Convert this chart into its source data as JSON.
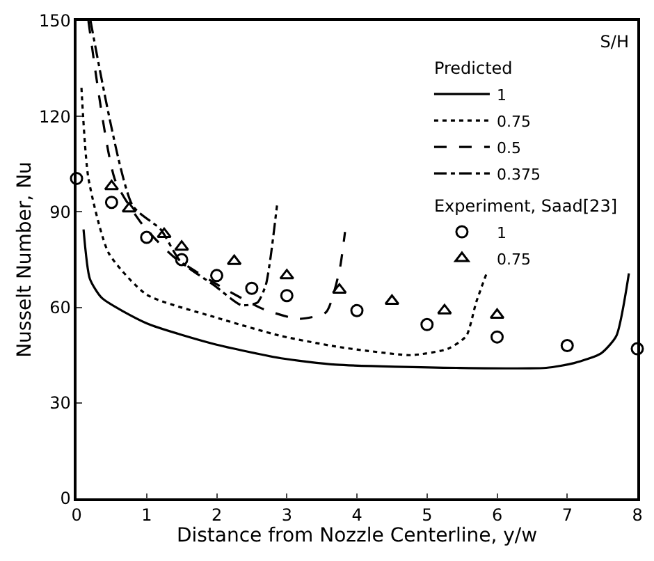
{
  "chart_data": {
    "type": "line",
    "xlabel": "Distance from Nozzle Centerline, y/w",
    "ylabel": "Nusselt Number, Nu",
    "legend_title": "S/H",
    "annotations": [
      "Predicted",
      "Experiment, Saad[23]"
    ],
    "xlim": [
      0,
      8
    ],
    "xticks": [
      0,
      1,
      2,
      3,
      4,
      5,
      6,
      7,
      8
    ],
    "ylim": [
      0,
      150
    ],
    "yticks": [
      0,
      30,
      60,
      90,
      120,
      150
    ],
    "grid": false,
    "legend": "top right",
    "series": [
      {
        "name": "1",
        "color": "#000000",
        "line_style": "solid",
        "marker": "none",
        "x": [
          0.1,
          0.19,
          0.36,
          1,
          1.96,
          2.92,
          3.7,
          5.42,
          6.7,
          7.1,
          7.48,
          7.7,
          7.88
        ],
        "values": [
          84.5,
          69,
          63,
          55,
          48.5,
          44,
          42,
          41,
          41,
          42.5,
          45.5,
          51,
          70.7
        ]
      },
      {
        "name": "0.75",
        "color": "#000000",
        "line_style": "dotted",
        "marker": "none",
        "x": [
          0.07,
          0.17,
          0.46,
          1,
          1.96,
          2.92,
          3.7,
          4.13,
          4.78,
          5.3,
          5.56,
          5.7,
          5.85
        ],
        "values": [
          129,
          100.5,
          77,
          64,
          57,
          51,
          47.7,
          46.4,
          45,
          47,
          51,
          61.5,
          70.7
        ]
      },
      {
        "name": "0.5",
        "color": "#000000",
        "line_style": "dashed",
        "marker": "none",
        "x": [
          0.17,
          0.55,
          0.94,
          1.38,
          2.1,
          2.67,
          3.17,
          3.56,
          3.75,
          3.83
        ],
        "values": [
          150,
          100,
          86,
          76,
          66,
          59.4,
          56.4,
          58.5,
          71.5,
          83.7
        ]
      },
      {
        "name": "0.375",
        "color": "#000000",
        "line_style": "dashdot",
        "marker": "none",
        "x": [
          0.2,
          0.8,
          1.2,
          1.48,
          1.96,
          2.35,
          2.58,
          2.7,
          2.77,
          2.86
        ],
        "values": [
          150,
          92,
          84.5,
          74.5,
          67,
          60.7,
          61.5,
          67,
          76,
          92
        ]
      },
      {
        "name": "1",
        "type": "scatter",
        "color": "#000000",
        "marker": "circle",
        "x": [
          0,
          0.5,
          1,
          1.5,
          2,
          2.5,
          3,
          4,
          5,
          6,
          7,
          8
        ],
        "values": [
          100.5,
          93,
          82,
          75,
          70,
          66,
          63.7,
          59,
          54.6,
          50.7,
          48,
          47
        ]
      },
      {
        "name": "0.75",
        "type": "scatter",
        "color": "#000000",
        "marker": "triangle",
        "x": [
          0.5,
          0.75,
          1.25,
          1.5,
          2.25,
          3,
          3.75,
          4.5,
          5.25,
          6
        ],
        "values": [
          98,
          91,
          83,
          79,
          74.5,
          70,
          65.5,
          62,
          59,
          57.6
        ]
      }
    ]
  }
}
